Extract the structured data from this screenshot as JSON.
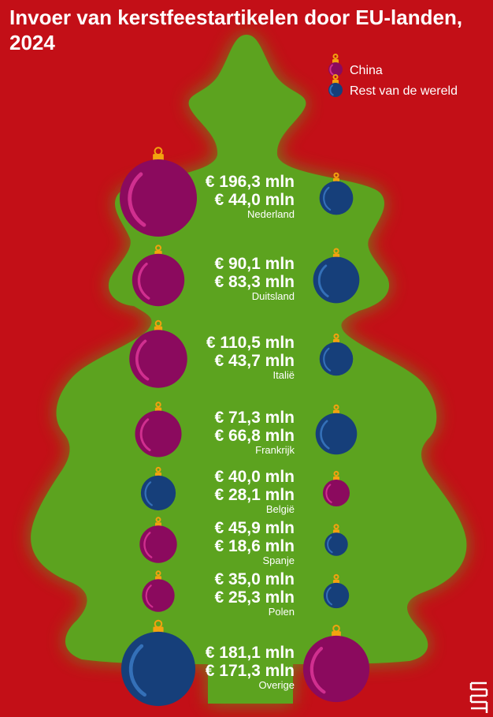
{
  "title_line1": "Invoer van kerstfeestartikelen door EU-landen,",
  "title_line2": "2024",
  "colors": {
    "background": "#c30f17",
    "tree": "#5ca31f",
    "china": "#8b0a5e",
    "rest": "#163f7a",
    "cap": "#f2a20f"
  },
  "chart_data": {
    "type": "bubble",
    "title": "Invoer van kerstfeestartikelen door EU-landen, 2024",
    "series": [
      {
        "name": "China",
        "color": "#8b0a5e",
        "key": "china"
      },
      {
        "name": "Rest van de wereld",
        "color": "#163f7a",
        "key": "rest"
      }
    ],
    "rows": [
      {
        "country": "Nederland",
        "first": "€ 196,3 mln",
        "second": "€ 44,0 mln",
        "china": 196.3,
        "rest": 44.0
      },
      {
        "country": "Duitsland",
        "first": "€ 90,1 mln",
        "second": "€ 83,3 mln",
        "china": 90.1,
        "rest": 83.3
      },
      {
        "country": "Italië",
        "first": "€ 110,5 mln",
        "second": "€ 43,7 mln",
        "china": 110.5,
        "rest": 43.7
      },
      {
        "country": "Frankrijk",
        "first": "€ 71,3 mln",
        "second": "€ 66,8 mln",
        "china": 71.3,
        "rest": 66.8
      },
      {
        "country": "België",
        "first": "€ 40,0 mln",
        "second": "€ 28,1 mln",
        "china": 28.1,
        "rest": 40.0
      },
      {
        "country": "Spanje",
        "first": "€ 45,9 mln",
        "second": "€ 18,6 mln",
        "china": 45.9,
        "rest": 18.6
      },
      {
        "country": "Polen",
        "first": "€ 35,0 mln",
        "second": "€ 25,3 mln",
        "china": 35.0,
        "rest": 25.3
      },
      {
        "country": "Overige",
        "first": "€ 181,1 mln",
        "second": "€ 171,3 mln",
        "china": 171.3,
        "rest": 181.1
      }
    ]
  },
  "logo": "cbs"
}
